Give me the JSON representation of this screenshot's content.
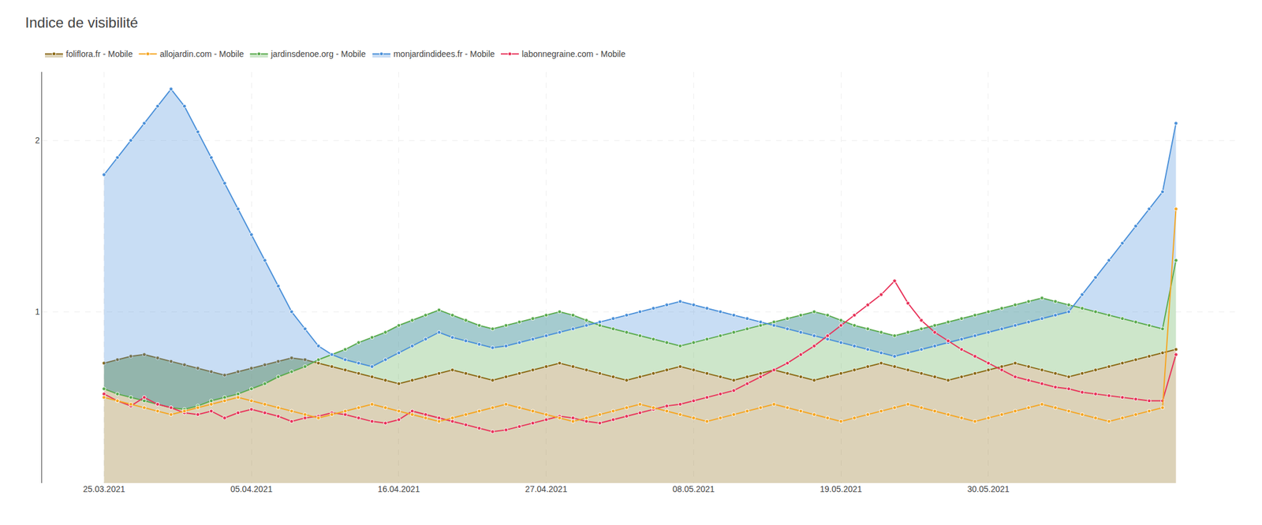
{
  "chart_data": {
    "type": "line",
    "title": "Indice de visibilité",
    "categories": [
      "25.03.2021",
      null,
      null,
      null,
      null,
      null,
      null,
      null,
      null,
      null,
      null,
      "05.04.2021",
      null,
      null,
      null,
      null,
      null,
      null,
      null,
      null,
      null,
      null,
      "16.04.2021",
      null,
      null,
      null,
      null,
      null,
      null,
      null,
      null,
      null,
      null,
      "27.04.2021",
      null,
      null,
      null,
      null,
      null,
      null,
      null,
      null,
      null,
      null,
      "08.05.2021",
      null,
      null,
      null,
      null,
      null,
      null,
      null,
      null,
      null,
      null,
      "19.05.2021",
      null,
      null,
      null,
      null,
      null,
      null,
      null,
      null,
      null,
      null,
      "30.05.2021",
      null,
      null,
      null,
      null,
      null,
      null,
      null,
      null,
      null,
      null,
      null,
      null,
      null,
      null
    ],
    "ylim": [
      0,
      2.4
    ],
    "yticks": [
      1,
      2
    ],
    "grid": true,
    "legend": "upper left",
    "marker": "circle",
    "line_style": "solid",
    "series": [
      {
        "name": "labonnegraine.com - Mobile",
        "color": "#e8335a",
        "type": "line",
        "values": [
          0.52,
          0.48,
          0.45,
          0.5,
          0.46,
          0.44,
          0.41,
          0.4,
          0.42,
          0.38,
          0.41,
          0.43,
          0.41,
          0.39,
          0.36,
          0.38,
          0.39,
          0.41,
          0.4,
          0.38,
          0.36,
          0.35,
          0.37,
          0.42,
          0.4,
          0.38,
          0.36,
          0.34,
          0.32,
          0.3,
          0.31,
          0.33,
          0.35,
          0.37,
          0.39,
          0.38,
          0.36,
          0.35,
          0.37,
          0.39,
          0.41,
          0.43,
          0.45,
          0.46,
          0.48,
          0.5,
          0.52,
          0.54,
          0.58,
          0.62,
          0.66,
          0.7,
          0.75,
          0.8,
          0.86,
          0.92,
          0.98,
          1.04,
          1.1,
          1.18,
          1.05,
          0.95,
          0.88,
          0.83,
          0.78,
          0.74,
          0.7,
          0.66,
          0.62,
          0.6,
          0.58,
          0.56,
          0.55,
          0.53,
          0.52,
          0.51,
          0.5,
          0.49,
          0.48,
          0.48,
          0.75
        ]
      },
      {
        "name": "monjardindidees.fr - Mobile",
        "color": "#4a90d9",
        "type": "area",
        "values": [
          1.8,
          1.9,
          2.0,
          2.1,
          2.2,
          2.3,
          2.2,
          2.05,
          1.9,
          1.75,
          1.6,
          1.45,
          1.3,
          1.15,
          1.0,
          0.9,
          0.8,
          0.75,
          0.72,
          0.7,
          0.68,
          0.72,
          0.76,
          0.8,
          0.84,
          0.88,
          0.85,
          0.83,
          0.81,
          0.79,
          0.8,
          0.82,
          0.84,
          0.86,
          0.88,
          0.9,
          0.92,
          0.94,
          0.96,
          0.98,
          1.0,
          1.02,
          1.04,
          1.06,
          1.04,
          1.02,
          1.0,
          0.98,
          0.96,
          0.94,
          0.92,
          0.9,
          0.88,
          0.86,
          0.84,
          0.82,
          0.8,
          0.78,
          0.76,
          0.74,
          0.76,
          0.78,
          0.8,
          0.82,
          0.84,
          0.86,
          0.88,
          0.9,
          0.92,
          0.94,
          0.96,
          0.98,
          1.0,
          1.1,
          1.2,
          1.3,
          1.4,
          1.5,
          1.6,
          1.7,
          2.1
        ]
      },
      {
        "name": "jardinsdenoe.org - Mobile",
        "color": "#5aab4e",
        "type": "area",
        "values": [
          0.55,
          0.52,
          0.5,
          0.48,
          0.46,
          0.44,
          0.43,
          0.45,
          0.48,
          0.5,
          0.52,
          0.55,
          0.58,
          0.62,
          0.65,
          0.68,
          0.72,
          0.75,
          0.78,
          0.82,
          0.85,
          0.88,
          0.92,
          0.95,
          0.98,
          1.01,
          0.98,
          0.95,
          0.92,
          0.9,
          0.92,
          0.94,
          0.96,
          0.98,
          1.0,
          0.98,
          0.95,
          0.92,
          0.9,
          0.88,
          0.86,
          0.84,
          0.82,
          0.8,
          0.82,
          0.84,
          0.86,
          0.88,
          0.9,
          0.92,
          0.94,
          0.96,
          0.98,
          1.0,
          0.98,
          0.95,
          0.92,
          0.9,
          0.88,
          0.86,
          0.88,
          0.9,
          0.92,
          0.94,
          0.96,
          0.98,
          1.0,
          1.02,
          1.04,
          1.06,
          1.08,
          1.06,
          1.04,
          1.02,
          1.0,
          0.98,
          0.96,
          0.94,
          0.92,
          0.9,
          1.3
        ]
      },
      {
        "name": "allojardin.com - Mobile",
        "color": "#f5a623",
        "type": "line",
        "values": [
          0.5,
          0.48,
          0.46,
          0.44,
          0.42,
          0.4,
          0.42,
          0.44,
          0.46,
          0.48,
          0.5,
          0.48,
          0.46,
          0.44,
          0.42,
          0.4,
          0.38,
          0.4,
          0.42,
          0.44,
          0.46,
          0.44,
          0.42,
          0.4,
          0.38,
          0.36,
          0.38,
          0.4,
          0.42,
          0.44,
          0.46,
          0.44,
          0.42,
          0.4,
          0.38,
          0.36,
          0.38,
          0.4,
          0.42,
          0.44,
          0.46,
          0.44,
          0.42,
          0.4,
          0.38,
          0.36,
          0.38,
          0.4,
          0.42,
          0.44,
          0.46,
          0.44,
          0.42,
          0.4,
          0.38,
          0.36,
          0.38,
          0.4,
          0.42,
          0.44,
          0.46,
          0.44,
          0.42,
          0.4,
          0.38,
          0.36,
          0.38,
          0.4,
          0.42,
          0.44,
          0.46,
          0.44,
          0.42,
          0.4,
          0.38,
          0.36,
          0.38,
          0.4,
          0.42,
          0.44,
          1.6
        ]
      },
      {
        "name": "foliflora.fr - Mobile",
        "color": "#8B6914",
        "type": "area",
        "values": [
          0.7,
          0.72,
          0.74,
          0.75,
          0.73,
          0.71,
          0.69,
          0.67,
          0.65,
          0.63,
          0.65,
          0.67,
          0.69,
          0.71,
          0.73,
          0.72,
          0.7,
          0.68,
          0.66,
          0.64,
          0.62,
          0.6,
          0.58,
          0.6,
          0.62,
          0.64,
          0.66,
          0.64,
          0.62,
          0.6,
          0.62,
          0.64,
          0.66,
          0.68,
          0.7,
          0.68,
          0.66,
          0.64,
          0.62,
          0.6,
          0.62,
          0.64,
          0.66,
          0.68,
          0.66,
          0.64,
          0.62,
          0.6,
          0.62,
          0.64,
          0.66,
          0.64,
          0.62,
          0.6,
          0.62,
          0.64,
          0.66,
          0.68,
          0.7,
          0.68,
          0.66,
          0.64,
          0.62,
          0.6,
          0.62,
          0.64,
          0.66,
          0.68,
          0.7,
          0.68,
          0.66,
          0.64,
          0.62,
          0.64,
          0.66,
          0.68,
          0.7,
          0.72,
          0.74,
          0.76,
          0.78
        ]
      }
    ]
  }
}
